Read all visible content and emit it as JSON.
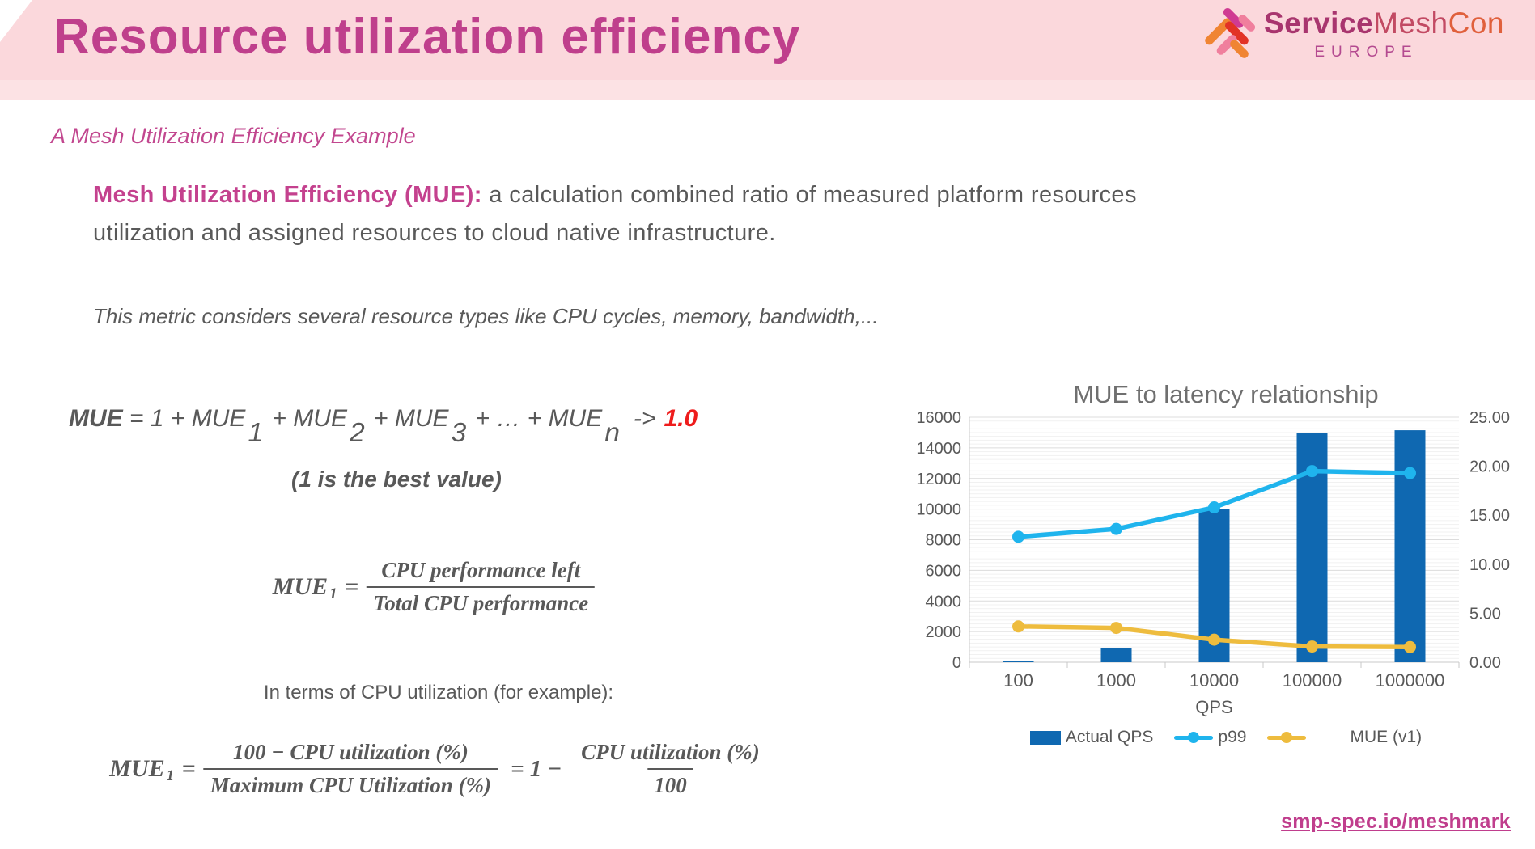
{
  "header": {
    "title": "Resource utilization efficiency",
    "brand": {
      "name_part1": "Service",
      "name_part2": "Mesh",
      "name_part3": "Con",
      "region": "EUROPE"
    }
  },
  "subtitle": "A Mesh Utilization Efficiency Example",
  "body": {
    "lead_bold": "Mesh Utilization Efficiency (MUE):",
    "lead_rest": " a calculation combined ratio of measured platform resources\nutilization and assigned resources to cloud native infrastructure.",
    "note": "This metric considers several resource types like CPU cycles, memory, bandwidth,..."
  },
  "formula_sum": {
    "lead": "MUE",
    "t1": " = 1 + MUE",
    "s1": "1",
    "t2": " + MUE",
    "s2": "2",
    "t3": " + MUE",
    "s3": "3",
    "t4": " + … + MUE",
    "sn": "n",
    "arrow": "->",
    "target": "1.0",
    "caption": "(1 is the best value)"
  },
  "formula_mue1": {
    "lhs": "MUE",
    "lhs_sub": "1",
    "eq": " =",
    "numerator": "CPU performance left",
    "denominator": "Total CPU performance"
  },
  "cpu_intro": "In terms of CPU utilization (for example):",
  "formula_cpu": {
    "lhs": "MUE",
    "lhs_sub": "1",
    "eq": " =",
    "num1": "100 − CPU utilization (%)",
    "den1": "Maximum CPU Utilization (%)",
    "mid": "= 1 −",
    "num2": "CPU utilization (%)",
    "den2": "100"
  },
  "footer_link": "smp-spec.io/meshmark",
  "colors": {
    "header_bg": "#fbd8dc",
    "accent_pink": "#bf3f8c",
    "text_gray": "#595959",
    "highlight_red": "#ee1c1c",
    "bar_blue": "#0f68b1",
    "line_cyan": "#1fb4ed",
    "line_yellow": "#eebc3e"
  },
  "chart_data": {
    "type": "combo",
    "title": "MUE to latency relationship",
    "xlabel": "QPS",
    "categories": [
      "100",
      "1000",
      "10000",
      "100000",
      "1000000"
    ],
    "grid": true,
    "legend_position": "bottom",
    "left_axis": {
      "min": 0,
      "max": 16000,
      "major": 2000,
      "minor": 250,
      "ticks": [
        "0",
        "2000",
        "4000",
        "6000",
        "8000",
        "10000",
        "12000",
        "14000",
        "16000"
      ]
    },
    "right_axis": {
      "min": 0,
      "max": 25,
      "major": 5,
      "ticks": [
        "0.00",
        "5.00",
        "10.00",
        "15.00",
        "20.00",
        "25.00"
      ]
    },
    "series": [
      {
        "name": "Actual QPS",
        "type": "bar",
        "axis": "left",
        "color": "#0f68b1",
        "values": [
          100,
          950,
          10000,
          14950,
          15150
        ]
      },
      {
        "name": "p99",
        "type": "line",
        "axis": "right",
        "color": "#1fb4ed",
        "values": [
          12.8,
          13.6,
          15.8,
          19.5,
          19.3
        ]
      },
      {
        "name": "MUE (v1)",
        "type": "line",
        "axis": "right",
        "color": "#eebc3e",
        "values": [
          3.65,
          3.5,
          2.3,
          1.6,
          1.55
        ]
      }
    ]
  }
}
